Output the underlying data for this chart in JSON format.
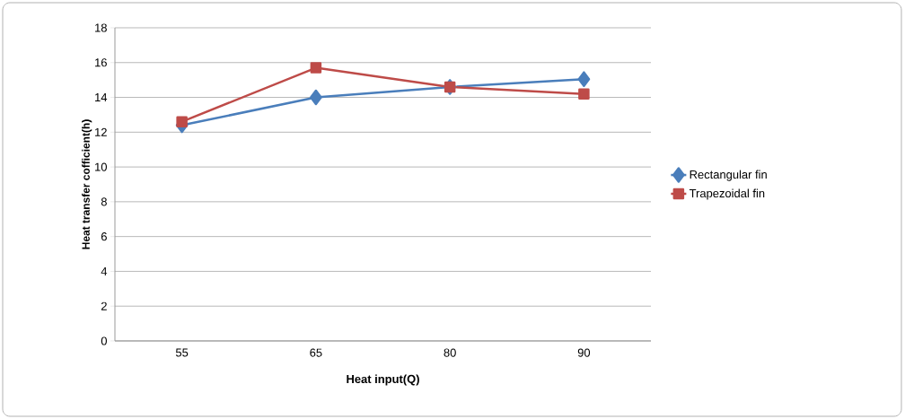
{
  "chart_data": {
    "type": "line",
    "xlabel": "Heat input(Q)",
    "ylabel": "Heat transfer cofficient(h)",
    "categories": [
      "55",
      "65",
      "80",
      "90"
    ],
    "series": [
      {
        "name": "Rectangular fin",
        "color": "#4a7ebb",
        "marker": "diamond",
        "values": [
          12.4,
          14.0,
          14.6,
          15.05
        ]
      },
      {
        "name": "Trapezoidal fin",
        "color": "#be4b48",
        "marker": "square",
        "values": [
          12.6,
          15.7,
          14.6,
          14.2
        ]
      }
    ],
    "ylim": [
      0,
      18
    ],
    "yticks": [
      0,
      2,
      4,
      6,
      8,
      10,
      12,
      14,
      16,
      18
    ],
    "grid": "y",
    "legend": "right"
  }
}
